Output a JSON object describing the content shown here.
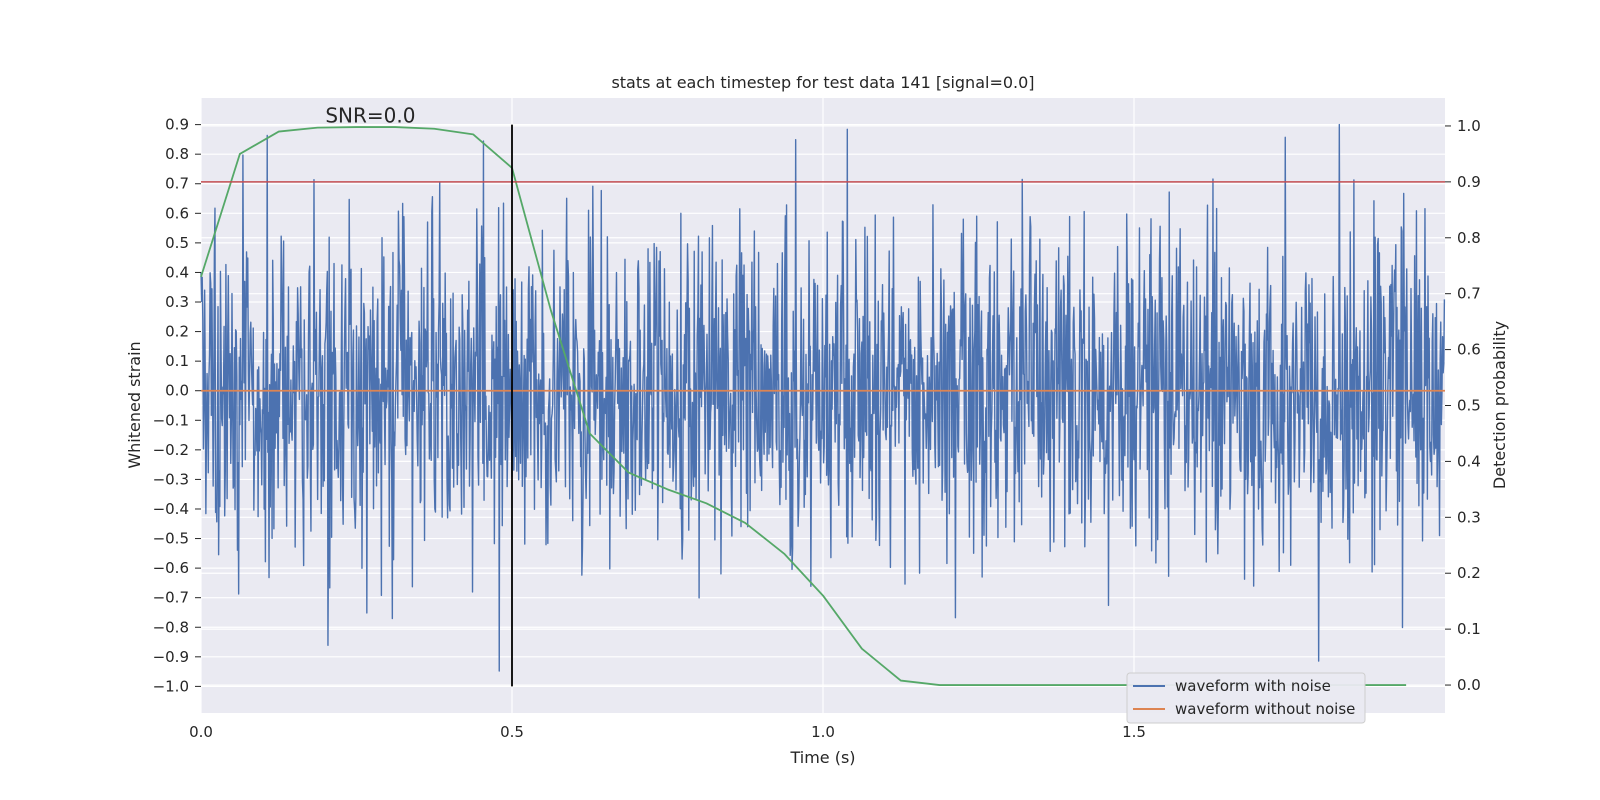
{
  "chart_data": {
    "type": "line",
    "title": "stats at each timestep for test data 141 [signal=0.0]",
    "xlabel": "Time (s)",
    "ylabel": "Whitened strain",
    "y2label": "Detection probability",
    "xlim": [
      0.0,
      2.0
    ],
    "ylim": [
      -1.09,
      0.99
    ],
    "y2lim": [
      -0.05,
      1.05
    ],
    "x_ticks": [
      0.0,
      0.5,
      1.0,
      1.5
    ],
    "x_tick_labels": [
      "0.0",
      "0.5",
      "1.0",
      "1.5"
    ],
    "y_ticks": [
      0.9,
      0.8,
      0.7,
      0.6,
      0.5,
      0.4,
      0.3,
      0.2,
      0.1,
      0.0,
      -0.1,
      -0.2,
      -0.3,
      -0.4,
      -0.5,
      -0.6,
      -0.7,
      -0.8,
      -0.9,
      -1.0
    ],
    "y_tick_labels": [
      "0.9",
      "0.8",
      "0.7",
      "0.6",
      "0.5",
      "0.4",
      "0.3",
      "0.2",
      "0.1",
      "0.0",
      "−0.1",
      "−0.2",
      "−0.3",
      "−0.4",
      "−0.5",
      "−0.6",
      "−0.7",
      "−0.8",
      "−0.9",
      "−1.0"
    ],
    "y2_ticks": [
      1.0,
      0.9,
      0.8,
      0.7,
      0.6,
      0.5,
      0.4,
      0.3,
      0.2,
      0.1,
      0.0
    ],
    "y2_tick_labels": [
      "1.0",
      "0.9",
      "0.8",
      "0.7",
      "0.6",
      "0.5",
      "0.4",
      "0.3",
      "0.2",
      "0.1",
      "0.0"
    ],
    "annotation": "SNR=0.0",
    "annotation_pos": {
      "x": 0.2,
      "y": 0.9
    },
    "vertical_line": {
      "x": 0.5,
      "y_range": [
        -1.0,
        0.9
      ],
      "color": "#000000"
    },
    "threshold_line": {
      "y": 0.9,
      "axis": "y2",
      "color": "#c44e52"
    },
    "series": [
      {
        "name": "waveform with noise",
        "color": "#4c72b0",
        "axis": "y",
        "kind": "noise",
        "n_points": 2048,
        "x_range": [
          0.0,
          2.0
        ],
        "std": 0.28,
        "min": -0.97,
        "max": 0.9,
        "seed": 141
      },
      {
        "name": "waveform without noise",
        "color": "#dd8452",
        "axis": "y",
        "x": [
          0.0,
          2.0
        ],
        "y": [
          0.0,
          0.0
        ]
      },
      {
        "name": "detection probability",
        "color": "#55a868",
        "axis": "y2",
        "x": [
          0.0,
          0.0625,
          0.125,
          0.1875,
          0.25,
          0.3125,
          0.375,
          0.4375,
          0.5,
          0.5625,
          0.625,
          0.6875,
          0.75,
          0.8125,
          0.875,
          0.9375,
          1.0,
          1.0625,
          1.125,
          1.1875,
          1.25,
          1.3125,
          1.375,
          1.4375,
          1.5,
          1.5625,
          1.625,
          1.6875,
          1.75,
          1.8125,
          1.875,
          1.9375
        ],
        "y": [
          0.73,
          0.95,
          0.99,
          0.997,
          0.998,
          0.998,
          0.995,
          0.985,
          0.925,
          0.67,
          0.45,
          0.38,
          0.35,
          0.325,
          0.29,
          0.235,
          0.16,
          0.065,
          0.008,
          0.0,
          0.0,
          0.0,
          0.0,
          0.0,
          0.0,
          0.0,
          0.0,
          0.0,
          0.0,
          0.0,
          0.0,
          0.0
        ]
      }
    ],
    "legend": {
      "location": "lower-right",
      "entries": [
        {
          "label": "waveform with noise",
          "color": "#4c72b0"
        },
        {
          "label": "waveform without noise",
          "color": "#dd8452"
        }
      ]
    }
  }
}
